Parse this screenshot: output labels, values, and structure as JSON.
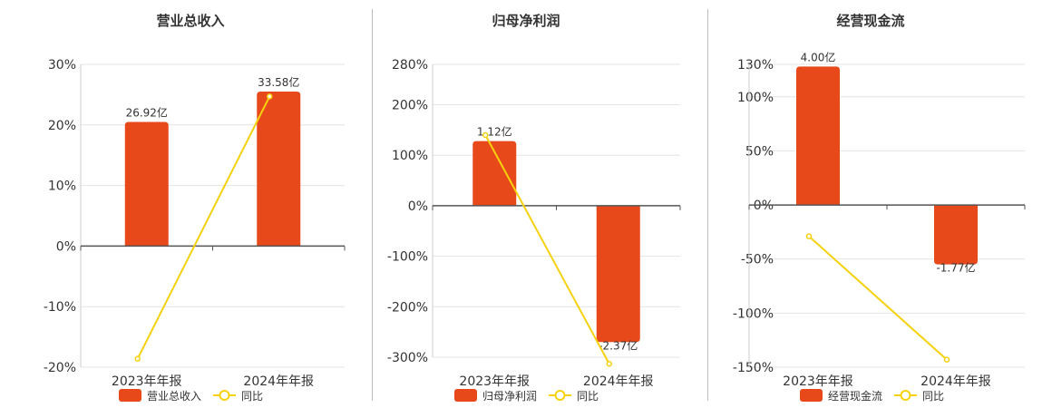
{
  "colors": {
    "bar": "#E8491B",
    "line": "#F5D10E",
    "grid": "#E4E4E4",
    "axis": "#555555",
    "divider": "#BDBDBD"
  },
  "chart_data": [
    {
      "type": "bar",
      "title": "营业总收入",
      "categories": [
        "2023年年报",
        "2024年年报"
      ],
      "ytick_labels": [
        "30%",
        "20%",
        "10%",
        "0%",
        "-10%",
        "-20%"
      ],
      "ylim": [
        -20,
        30
      ],
      "ytick_values": [
        30,
        20,
        10,
        0,
        -10,
        -20
      ],
      "series": [
        {
          "name": "营业总收入",
          "kind": "bar",
          "values": [
            20.5,
            25.5
          ],
          "labels": [
            "26.92亿",
            "33.58亿"
          ]
        },
        {
          "name": "同比",
          "kind": "line",
          "values": [
            -18.6,
            24.7
          ]
        }
      ],
      "legend": "bottom"
    },
    {
      "type": "bar",
      "title": "归母净利润",
      "categories": [
        "2023年年报",
        "2024年年报"
      ],
      "ytick_labels": [
        "280%",
        "200%",
        "100%",
        "0%",
        "-100%",
        "-200%",
        "-300%"
      ],
      "ytick_values": [
        280,
        200,
        100,
        0,
        -100,
        -200,
        -300
      ],
      "ylim": [
        -300,
        280
      ],
      "series": [
        {
          "name": "归母净利润",
          "kind": "bar",
          "values": [
            128,
            -270
          ],
          "labels": [
            "1.12亿",
            "-2.37亿"
          ]
        },
        {
          "name": "同比",
          "kind": "line",
          "values": [
            140,
            -313
          ]
        }
      ],
      "legend": "bottom"
    },
    {
      "type": "bar",
      "title": "经营现金流",
      "categories": [
        "2023年年报",
        "2024年年报"
      ],
      "ytick_labels": [
        "130%",
        "100%",
        "50%",
        "0%",
        "-50%",
        "-100%",
        "-150%"
      ],
      "ytick_values": [
        130,
        100,
        50,
        0,
        -50,
        -100,
        -150
      ],
      "ylim": [
        -150,
        130
      ],
      "series": [
        {
          "name": "经营现金流",
          "kind": "bar",
          "values": [
            128,
            -55
          ],
          "labels": [
            "4.00亿",
            "-1.77亿"
          ]
        },
        {
          "name": "同比",
          "kind": "line",
          "values": [
            -29,
            -143
          ]
        }
      ],
      "legend": "bottom"
    }
  ]
}
